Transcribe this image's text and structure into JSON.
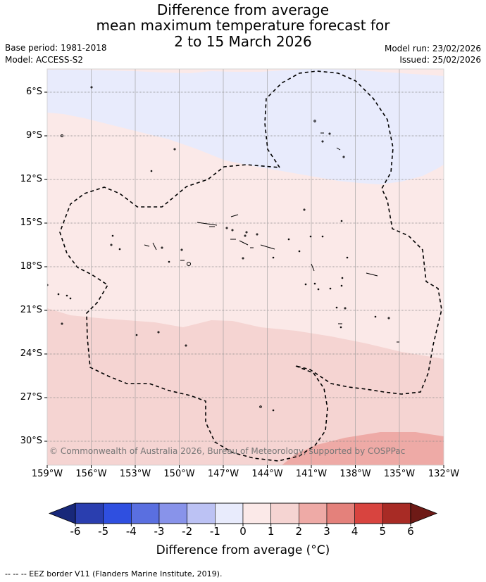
{
  "title_lines": [
    "Difference from average",
    "mean maximum temperature forecast for",
    "2 to 15 March 2026"
  ],
  "left_meta": {
    "base_period": "Base period: 1981-2018",
    "model": "Model: ACCESS-S2"
  },
  "right_meta": {
    "model_run": "Model run: 23/02/2026",
    "issued": "Issued: 25/02/2026"
  },
  "map": {
    "lat_labels": [
      "6°S",
      "9°S",
      "12°S",
      "15°S",
      "18°S",
      "21°S",
      "24°S",
      "27°S",
      "30°S"
    ],
    "lat_values": [
      -6,
      -9,
      -12,
      -15,
      -18,
      -21,
      -24,
      -27,
      -30
    ],
    "lon_labels": [
      "159°W",
      "156°W",
      "153°W",
      "150°W",
      "147°W",
      "144°W",
      "141°W",
      "138°W",
      "135°W",
      "132°W"
    ],
    "lon_values": [
      -159,
      -156,
      -153,
      -150,
      -147,
      -144,
      -141,
      -138,
      -135,
      -132
    ],
    "lat_range": [
      -32.5,
      -4.4
    ],
    "lon_range": [
      -159,
      -132
    ],
    "copyright": "© Commonwealth of Australia 2026, Bureau of Meteorology, supported by COSPPac",
    "colors": {
      "anom_m1": "#e8ebfc",
      "anom_p0": "#fbe9e8",
      "anom_p1": "#f5d4d2",
      "anom_p2": "#eeaaa6",
      "eez_border": "#000000"
    }
  },
  "colorbar": {
    "ticks": [
      "-6",
      "-5",
      "-4",
      "-3",
      "-2",
      "-1",
      "0",
      "1",
      "2",
      "3",
      "4",
      "5",
      "6"
    ],
    "colors": [
      "#2a3eaf",
      "#2f4fe0",
      "#5a6fe0",
      "#8893ea",
      "#bcc2f4",
      "#e8ebfc",
      "#fbe9e8",
      "#f5d4d2",
      "#eeaaa6",
      "#e4817b",
      "#d8443f",
      "#a82b25"
    ],
    "under_color": "#18287a",
    "over_color": "#6e1a16",
    "label": "Difference from average (°C)"
  },
  "footer": "-- -- -- EEZ border V11 (Flanders Marine Institute, 2019)."
}
